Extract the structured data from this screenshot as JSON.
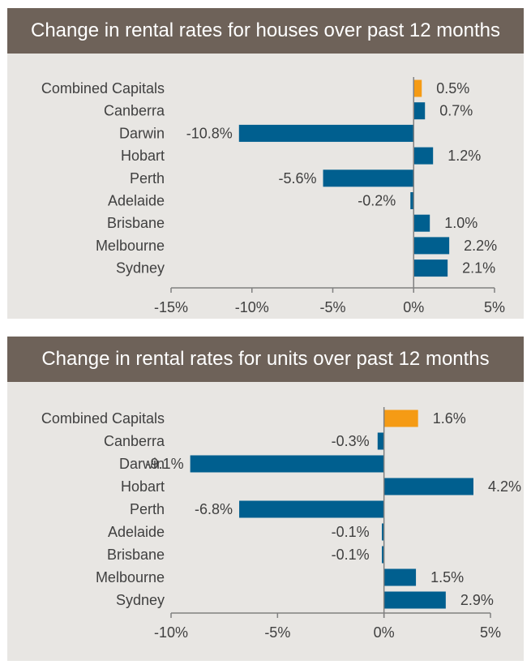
{
  "chart_data": [
    {
      "type": "bar",
      "orientation": "horizontal",
      "title": "Change in rental rates for houses over past 12 months",
      "categories": [
        "Combined Capitals",
        "Canberra",
        "Darwin",
        "Hobart",
        "Perth",
        "Adelaide",
        "Brisbane",
        "Melbourne",
        "Sydney"
      ],
      "values": [
        0.5,
        0.7,
        -10.8,
        1.2,
        -5.6,
        -0.2,
        1.0,
        2.2,
        2.1
      ],
      "value_labels": [
        "0.5%",
        "0.7%",
        "-10.8%",
        "1.2%",
        "-5.6%",
        "-0.2%",
        "1.0%",
        "2.2%",
        "2.1%"
      ],
      "xlim": [
        -15,
        5
      ],
      "xticks": [
        -15,
        -10,
        -5,
        0,
        5
      ],
      "xtick_labels": [
        "-15%",
        "-10%",
        "-5%",
        "0%",
        "5%"
      ],
      "highlight_category": "Combined Capitals",
      "grid": false,
      "legend": "none"
    },
    {
      "type": "bar",
      "orientation": "horizontal",
      "title": "Change in rental rates for units over past 12 months",
      "categories": [
        "Combined Capitals",
        "Canberra",
        "Darwin",
        "Hobart",
        "Perth",
        "Adelaide",
        "Brisbane",
        "Melbourne",
        "Sydney"
      ],
      "values": [
        1.6,
        -0.3,
        -9.1,
        4.2,
        -6.8,
        -0.1,
        -0.1,
        1.5,
        2.9
      ],
      "value_labels": [
        "1.6%",
        "-0.3%",
        "-9.1%",
        "4.2%",
        "-6.8%",
        "-0.1%",
        "-0.1%",
        "1.5%",
        "2.9%"
      ],
      "xlim": [
        -10,
        5
      ],
      "xticks": [
        -10,
        -5,
        0,
        5
      ],
      "xtick_labels": [
        "-10%",
        "-5%",
        "0%",
        "5%"
      ],
      "highlight_category": "Combined Capitals",
      "grid": false,
      "legend": "none"
    }
  ],
  "colors": {
    "bar": "#005f8f",
    "highlight": "#f59b15",
    "title_bar": "#6e6259",
    "panel": "#e8e6e3",
    "text": "#404040",
    "axis": "#808080"
  }
}
